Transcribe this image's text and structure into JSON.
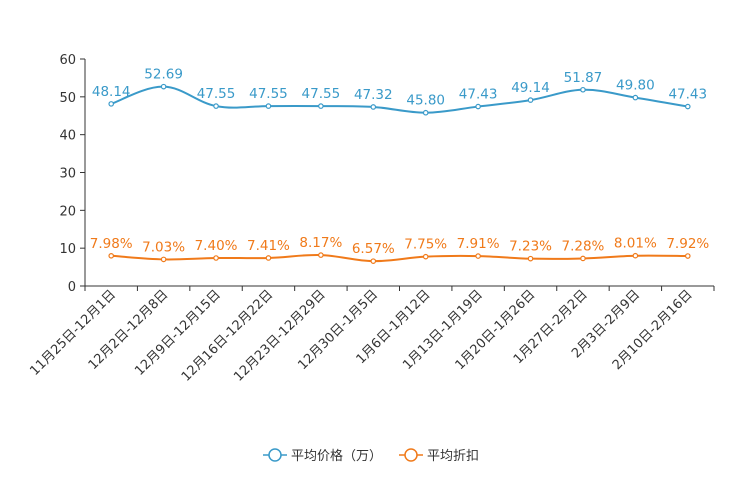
{
  "chart_data": {
    "type": "line",
    "categories": [
      "11月25日-12月1日",
      "12月2日-12月8日",
      "12月9日-12月15日",
      "12月16日-12月22日",
      "12月23日-12月29日",
      "12月30日-1月5日",
      "1月6日-1月12日",
      "1月13日-1月19日",
      "1月20日-1月26日",
      "1月27日-2月2日",
      "2月3日-2月9日",
      "2月10日-2月16日"
    ],
    "ylim": [
      0,
      60
    ],
    "yticks": [
      "0",
      "10",
      "20",
      "30",
      "40",
      "50",
      "60"
    ],
    "series": [
      {
        "name": "平均价格（万）",
        "color": "#3a9ac9",
        "values": [
          48.14,
          52.69,
          47.55,
          47.55,
          47.55,
          47.32,
          45.8,
          47.43,
          49.14,
          51.87,
          49.8,
          47.43
        ],
        "labels": [
          "48.14",
          "52.69",
          "47.55",
          "47.55",
          "47.55",
          "47.32",
          "45.80",
          "47.43",
          "49.14",
          "51.87",
          "49.80",
          "47.43"
        ]
      },
      {
        "name": "平均折扣",
        "color": "#f07a1a",
        "values": [
          7.98,
          7.03,
          7.4,
          7.41,
          8.17,
          6.57,
          7.75,
          7.91,
          7.23,
          7.28,
          8.01,
          7.92
        ],
        "labels": [
          "7.98%",
          "7.03%",
          "7.40%",
          "7.41%",
          "8.17%",
          "6.57%",
          "7.75%",
          "7.91%",
          "7.23%",
          "7.28%",
          "8.01%",
          "7.92%"
        ]
      }
    ],
    "legend_position": "bottom-center",
    "grid": false
  }
}
